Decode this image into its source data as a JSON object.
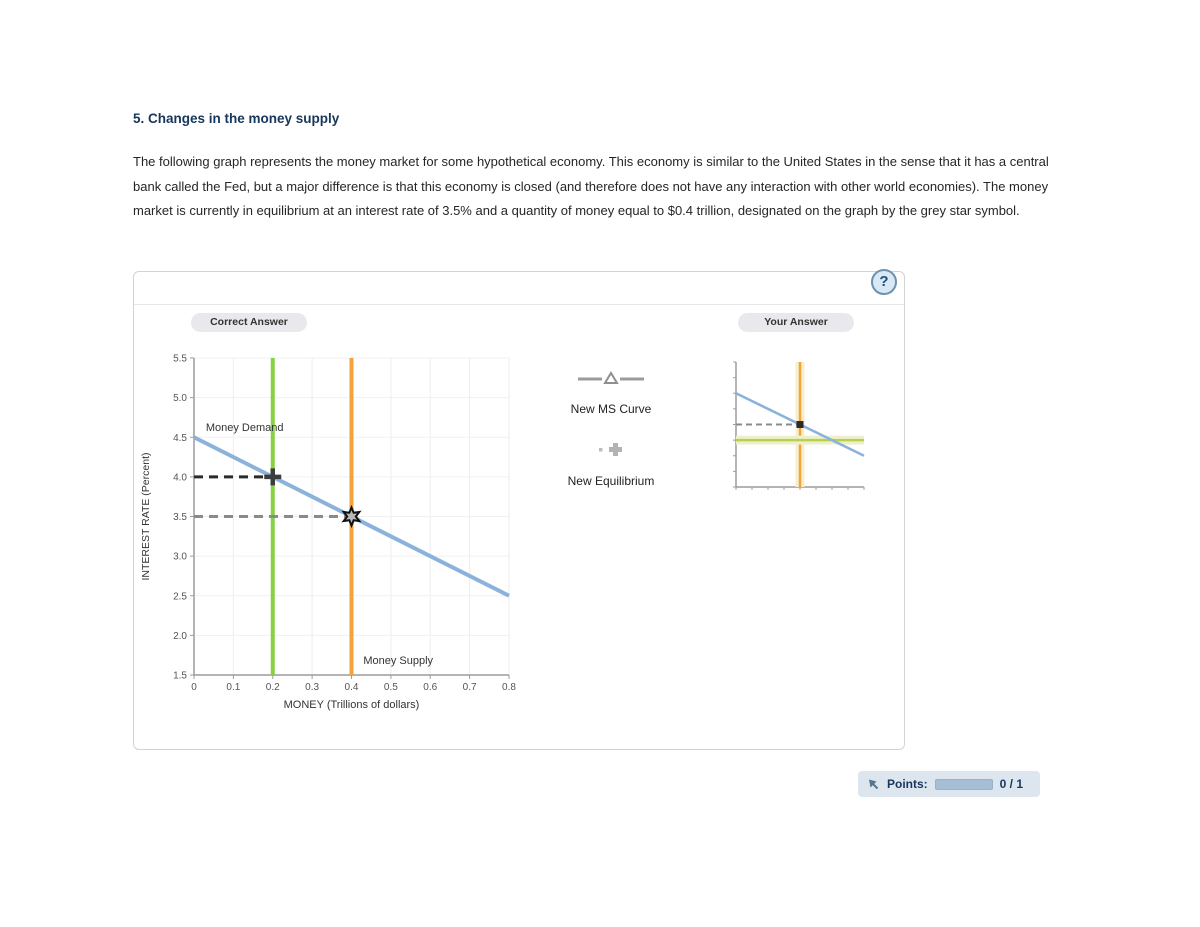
{
  "question": {
    "number_title": "5. Changes in the money supply",
    "body": "The following graph represents the money market for some hypothetical economy. This economy is similar to the United States in the sense that it has a central bank called the Fed, but a major difference is that this economy is closed (and therefore does not have any interaction with other world economies). The money market is currently in equilibrium at an interest rate of 3.5% and a quantity of money equal to $0.4 trillion, designated on the graph by the grey star symbol."
  },
  "panel": {
    "help_icon_glyph": "?",
    "correct_answer_label": "Correct Answer",
    "your_answer_label": "Your Answer",
    "tools": [
      {
        "label": "New MS Curve",
        "icon": "line-with-triangle-icon"
      },
      {
        "label": "New Equilibrium",
        "icon": "plus-icon"
      }
    ]
  },
  "footer": {
    "points_label": "Points:",
    "score": "0 / 1"
  },
  "colors": {
    "title_navy": "#16365c",
    "demand_blue": "#8ab2da",
    "supply_orange": "#f2a33a",
    "new_ms_green": "#86d244",
    "your_ms_olive": "#b9cf4e",
    "dash_black": "#2a2a2a",
    "dash_grey": "#8a8a8a",
    "star_fill": "#b9b9b9",
    "badge_blue_grey": "#dde5ee"
  },
  "chart_data": [
    {
      "id": "main-chart",
      "type": "line",
      "title": "Correct Answer",
      "xlabel": "MONEY (Trillions of dollars)",
      "ylabel": "INTEREST RATE (Percent)",
      "xlim": [
        0,
        0.8
      ],
      "ylim": [
        1.5,
        5.5
      ],
      "xticks": [
        "0",
        "0.1",
        "0.2",
        "0.3",
        "0.4",
        "0.5",
        "0.6",
        "0.7",
        "0.8"
      ],
      "yticks": [
        "1.5",
        "2.0",
        "2.5",
        "3.0",
        "3.5",
        "4.0",
        "4.5",
        "5.0",
        "5.5"
      ],
      "grid": true,
      "legend_position": "none",
      "series": [
        {
          "name": "New MS Curve",
          "slug": "new-ms-curve-line",
          "color": "#86d244",
          "width": 4,
          "points": [
            [
              0.2,
              1.5
            ],
            [
              0.2,
              5.5
            ]
          ]
        },
        {
          "name": "Money Supply",
          "slug": "money-supply-line",
          "color": "#f2a33a",
          "width": 4,
          "points": [
            [
              0.4,
              1.5
            ],
            [
              0.4,
              5.5
            ]
          ],
          "label_pos": [
            0.43,
            1.64
          ]
        },
        {
          "name": "Money Demand",
          "slug": "money-demand-line",
          "color": "#8ab2da",
          "width": 4,
          "points": [
            [
              0,
              4.5
            ],
            [
              0.8,
              2.5
            ]
          ],
          "label_pos": [
            0.03,
            4.58
          ]
        }
      ],
      "annotations": [
        {
          "type": "dashed",
          "name": "guide-dashed-4-0",
          "color": "#2a2a2a",
          "points": [
            [
              0,
              4.0
            ],
            [
              0.2,
              4.0
            ]
          ]
        },
        {
          "type": "dashed",
          "name": "guide-dashed-3-5",
          "color": "#8a8a8a",
          "points": [
            [
              0,
              3.5
            ],
            [
              0.4,
              3.5
            ]
          ]
        },
        {
          "type": "plus",
          "name": "new-equilibrium-plus",
          "color": "#3d3d3d",
          "at": [
            0.2,
            4.0
          ]
        },
        {
          "type": "star",
          "name": "initial-equilibrium-star",
          "fill": "#b9b9b9",
          "stroke": "#111111",
          "at": [
            0.4,
            3.5
          ]
        }
      ]
    },
    {
      "id": "mini-chart",
      "type": "line",
      "title": "Your Answer",
      "xlabel": "",
      "ylabel": "",
      "xlim": [
        0,
        0.8
      ],
      "ylim": [
        1.5,
        5.5
      ],
      "xticks": [
        "0",
        "0.1",
        "0.2",
        "0.3",
        "0.4",
        "0.5",
        "0.6",
        "0.7",
        "0.8"
      ],
      "yticks": [
        "1.5",
        "2.0",
        "2.5",
        "3.0",
        "3.5",
        "4.0",
        "4.5",
        "5.0",
        "5.5"
      ],
      "grid": false,
      "legend_position": "none",
      "series": [
        {
          "name": "Money Supply",
          "slug": "your-money-supply-line",
          "color": "#f2a33a",
          "width": 2.5,
          "halo": "#f7eecd",
          "points": [
            [
              0.4,
              1.5
            ],
            [
              0.4,
              5.5
            ]
          ]
        },
        {
          "name": "New MS Curve (placed horizontally)",
          "slug": "your-new-ms-curve-line",
          "color": "#b9cf4e",
          "width": 2.5,
          "halo": "#eef0cd",
          "points": [
            [
              0,
              3.0
            ],
            [
              0.8,
              3.0
            ]
          ]
        },
        {
          "name": "Money Demand",
          "slug": "your-money-demand-line",
          "color": "#8ab2da",
          "width": 2.5,
          "points": [
            [
              0,
              4.5
            ],
            [
              0.8,
              2.5
            ]
          ]
        }
      ],
      "annotations": [
        {
          "type": "dashed",
          "name": "your-guide-dashed-3-5",
          "color": "#8a8a8a",
          "points": [
            [
              0,
              3.5
            ],
            [
              0.4,
              3.5
            ]
          ]
        },
        {
          "type": "square",
          "name": "your-equilibrium-marker",
          "color": "#2b2b2b",
          "at": [
            0.4,
            3.5
          ]
        }
      ]
    }
  ]
}
